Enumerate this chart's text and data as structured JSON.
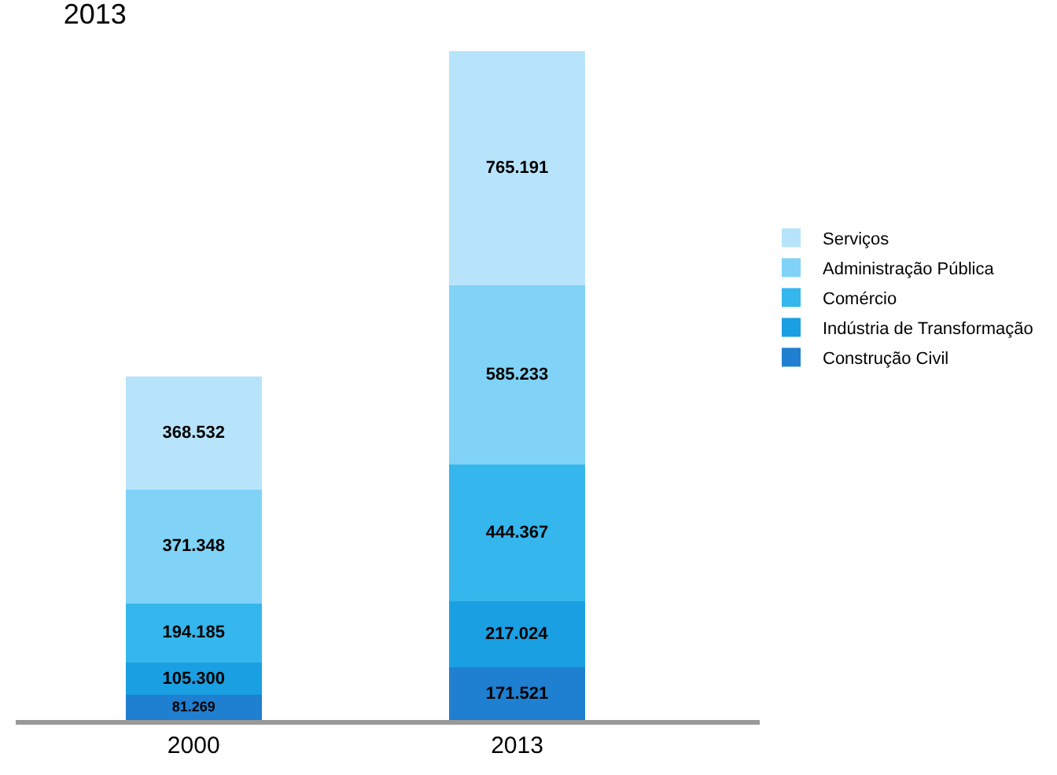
{
  "chart_data": {
    "type": "bar",
    "title": "2013",
    "stacked": true,
    "categories": [
      "2000",
      "2013"
    ],
    "series": [
      {
        "name": "Construção Civil",
        "color": "#1f7fd0",
        "values": [
          81269,
          171521
        ],
        "value_labels": [
          "81.269",
          "171.521"
        ]
      },
      {
        "name": "Indústria de Transformação",
        "color": "#1a9fe2",
        "values": [
          105300,
          217024
        ],
        "value_labels": [
          "105.300",
          "217.024"
        ]
      },
      {
        "name": "Comércio",
        "color": "#35b6ec",
        "values": [
          194185,
          444367
        ],
        "value_labels": [
          "194.185",
          "444.367"
        ]
      },
      {
        "name": "Administração Pública",
        "color": "#80d3f6",
        "values": [
          371348,
          585233
        ],
        "value_labels": [
          "371.348",
          "585.233"
        ]
      },
      {
        "name": "Serviços",
        "color": "#b8e4fb",
        "values": [
          368532,
          765191
        ],
        "value_labels": [
          "368.532",
          "765.191"
        ]
      }
    ],
    "legend": "right"
  }
}
